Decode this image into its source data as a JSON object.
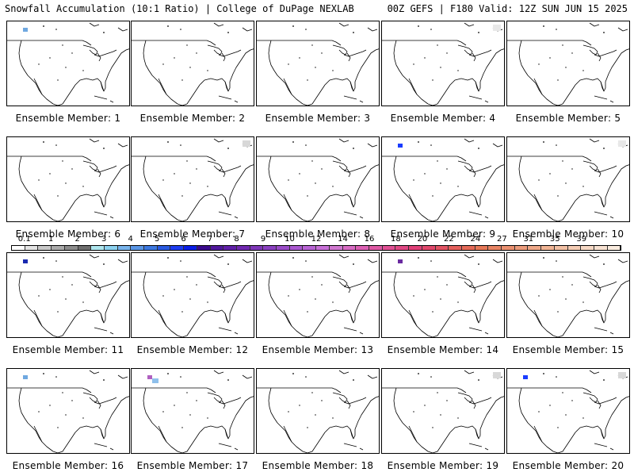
{
  "header": {
    "left_title": "Snowfall Accumulation (10:1 Ratio) | College of DuPage NEXLAB",
    "right_title": "00Z GEFS | F180 Valid: 12Z SUN JUN 15 2025"
  },
  "panels": [
    {
      "label": "Ensemble Member: 1",
      "snow_spots": [
        {
          "region": "northwest",
          "color": "#6fa8e0"
        }
      ]
    },
    {
      "label": "Ensemble Member: 2",
      "snow_spots": []
    },
    {
      "label": "Ensemble Member: 3",
      "snow_spots": []
    },
    {
      "label": "Ensemble Member: 4",
      "snow_spots": [
        {
          "region": "northeast",
          "color": "#e8e8e8"
        }
      ]
    },
    {
      "label": "Ensemble Member: 5",
      "snow_spots": []
    },
    {
      "label": "Ensemble Member: 6",
      "snow_spots": []
    },
    {
      "label": "Ensemble Member: 7",
      "snow_spots": [
        {
          "region": "northeast",
          "color": "#d8d8d8"
        }
      ]
    },
    {
      "label": "Ensemble Member: 8",
      "snow_spots": []
    },
    {
      "label": "Ensemble Member: 9",
      "snow_spots": [
        {
          "region": "northwest",
          "color": "#1a3cff"
        }
      ]
    },
    {
      "label": "Ensemble Member: 10",
      "snow_spots": [
        {
          "region": "northeast",
          "color": "#e8e8e8"
        }
      ]
    },
    {
      "label": "Ensemble Member: 11",
      "snow_spots": [
        {
          "region": "northwest",
          "color": "#1a2ab0"
        }
      ]
    },
    {
      "label": "Ensemble Member: 12",
      "snow_spots": []
    },
    {
      "label": "Ensemble Member: 13",
      "snow_spots": []
    },
    {
      "label": "Ensemble Member: 14",
      "snow_spots": [
        {
          "region": "northwest",
          "color": "#6a2aa0"
        }
      ]
    },
    {
      "label": "Ensemble Member: 15",
      "snow_spots": []
    },
    {
      "label": "Ensemble Member: 16",
      "snow_spots": [
        {
          "region": "northwest",
          "color": "#6fa8e0"
        }
      ]
    },
    {
      "label": "Ensemble Member: 17",
      "snow_spots": [
        {
          "region": "northwest",
          "color": "#b060c0"
        },
        {
          "region": "northwest-inland",
          "color": "#8fc0ec"
        }
      ]
    },
    {
      "label": "Ensemble Member: 18",
      "snow_spots": []
    },
    {
      "label": "Ensemble Member: 19",
      "snow_spots": [
        {
          "region": "northeast",
          "color": "#d8d8d8"
        }
      ]
    },
    {
      "label": "Ensemble Member: 20",
      "snow_spots": [
        {
          "region": "northwest",
          "color": "#1a3cff"
        },
        {
          "region": "northeast",
          "color": "#d8d8d8"
        }
      ]
    }
  ],
  "colorbar": {
    "labels": [
      {
        "text": "0.1",
        "index": 1
      },
      {
        "text": "1",
        "index": 3
      },
      {
        "text": "2",
        "index": 5
      },
      {
        "text": "3",
        "index": 7
      },
      {
        "text": "4",
        "index": 9
      },
      {
        "text": "5",
        "index": 11
      },
      {
        "text": "6",
        "index": 13
      },
      {
        "text": "7",
        "index": 15
      },
      {
        "text": "8",
        "index": 17
      },
      {
        "text": "9",
        "index": 19
      },
      {
        "text": "10",
        "index": 21
      },
      {
        "text": "12",
        "index": 23
      },
      {
        "text": "14",
        "index": 25
      },
      {
        "text": "16",
        "index": 27
      },
      {
        "text": "18",
        "index": 29
      },
      {
        "text": "20",
        "index": 31
      },
      {
        "text": "22",
        "index": 33
      },
      {
        "text": "24",
        "index": 35
      },
      {
        "text": "27",
        "index": 37
      },
      {
        "text": "31",
        "index": 39
      },
      {
        "text": "35",
        "index": 41
      },
      {
        "text": "39",
        "index": 43
      }
    ],
    "colors": [
      "#ffffff",
      "#e4e4e4",
      "#c8c8c8",
      "#aaaaaa",
      "#8c8c8c",
      "#6e6e6e",
      "#aee6ee",
      "#8cd2f0",
      "#78b4ec",
      "#5a96e6",
      "#3c78e0",
      "#2a5ae0",
      "#1e3cf0",
      "#0a1ee6",
      "#3a0a8c",
      "#50189c",
      "#6020a8",
      "#7028b0",
      "#7e36b8",
      "#8a40c0",
      "#9a4cc8",
      "#aa58d0",
      "#b864d4",
      "#c870d8",
      "#d078d0",
      "#d86cc4",
      "#dc60b4",
      "#de58a4",
      "#e05094",
      "#e04884",
      "#e04078",
      "#e0486c",
      "#e25464",
      "#e4605c",
      "#e46a58",
      "#e67858",
      "#e88464",
      "#ea9070",
      "#ec9c7c",
      "#eea888",
      "#f0b494",
      "#f2c0a4",
      "#f4ccb4",
      "#f6d8c4",
      "#f8e2d2",
      "#faecdf"
    ]
  }
}
